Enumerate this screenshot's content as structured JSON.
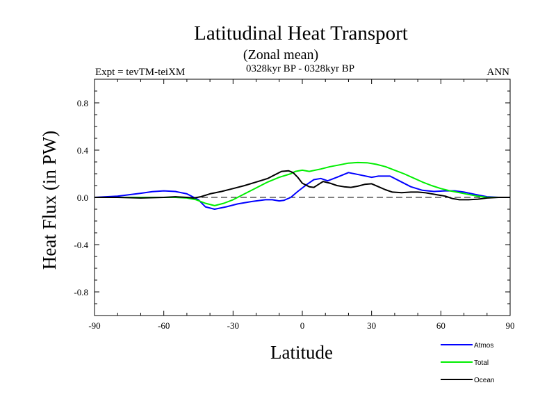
{
  "title": "Latitudinal Heat Transport",
  "subtitle": "(Zonal mean)",
  "left_label": "Expt = tevTM-teiXM",
  "center_label": "0328kyr BP - 0328kyr BP",
  "right_label": "ANN",
  "chart_data": {
    "type": "line",
    "xlabel": "Latitude",
    "ylabel": "Heat Flux (in PW)",
    "xlim": [
      -90,
      90
    ],
    "ylim": [
      -1.0,
      1.0
    ],
    "xticks": [
      -90,
      -60,
      -30,
      0,
      30,
      60,
      90
    ],
    "xtick_labels": [
      "-90",
      "-60",
      "-30",
      "0",
      "30",
      "60",
      "90"
    ],
    "yticks": [
      -0.8,
      -0.4,
      0.0,
      0.4,
      0.8
    ],
    "ytick_labels": [
      "-0.8",
      "-0.4",
      "0.0",
      "0.4",
      "0.8"
    ],
    "zero_line": true,
    "legend_position": "bottom-right",
    "series": [
      {
        "name": "Atmos",
        "color": "#0000ff",
        "x": [
          -90,
          -80,
          -70,
          -65,
          -60,
          -55,
          -50,
          -45,
          -42,
          -38,
          -33,
          -28,
          -22,
          -16,
          -13,
          -10,
          -8,
          -5,
          -2,
          2,
          5,
          8,
          11,
          15,
          20,
          25,
          30,
          33,
          38,
          42,
          47,
          52,
          57,
          62,
          66,
          70,
          75,
          80,
          85,
          90
        ],
        "y": [
          0.0,
          0.01,
          0.035,
          0.048,
          0.055,
          0.05,
          0.03,
          -0.02,
          -0.08,
          -0.1,
          -0.08,
          -0.055,
          -0.035,
          -0.02,
          -0.02,
          -0.03,
          -0.025,
          0.0,
          0.05,
          0.11,
          0.15,
          0.16,
          0.14,
          0.17,
          0.21,
          0.19,
          0.17,
          0.18,
          0.18,
          0.14,
          0.09,
          0.06,
          0.05,
          0.055,
          0.055,
          0.045,
          0.025,
          0.005,
          0.0,
          0.0
        ]
      },
      {
        "name": "Total",
        "color": "#00ee00",
        "x": [
          -90,
          -80,
          -70,
          -60,
          -55,
          -50,
          -46,
          -42,
          -38,
          -34,
          -30,
          -25,
          -20,
          -15,
          -10,
          -5,
          -3,
          0,
          3,
          8,
          12,
          16,
          20,
          24,
          28,
          32,
          36,
          40,
          44,
          48,
          52,
          56,
          60,
          64,
          68,
          72,
          76,
          80,
          85,
          90
        ],
        "y": [
          0.0,
          0.0,
          0.0,
          0.0,
          0.0,
          -0.005,
          -0.02,
          -0.05,
          -0.07,
          -0.05,
          -0.02,
          0.03,
          0.08,
          0.13,
          0.17,
          0.2,
          0.22,
          0.23,
          0.22,
          0.24,
          0.26,
          0.275,
          0.29,
          0.295,
          0.293,
          0.28,
          0.26,
          0.23,
          0.2,
          0.165,
          0.13,
          0.1,
          0.075,
          0.055,
          0.04,
          0.025,
          0.01,
          0.0,
          0.0,
          0.0
        ]
      },
      {
        "name": "Ocean",
        "color": "#000000",
        "x": [
          -90,
          -80,
          -70,
          -60,
          -55,
          -50,
          -47,
          -44,
          -40,
          -35,
          -30,
          -25,
          -20,
          -15,
          -12,
          -9,
          -6,
          -4,
          -2,
          0,
          3,
          5,
          7,
          9,
          12,
          15,
          18,
          21,
          24,
          27,
          30,
          33,
          36,
          39,
          43,
          47,
          50,
          53,
          56,
          59,
          62,
          65,
          68,
          72,
          76,
          80,
          85,
          90
        ],
        "y": [
          0.0,
          0.0,
          -0.005,
          0.0,
          0.005,
          0.0,
          -0.005,
          0.005,
          0.03,
          0.05,
          0.075,
          0.1,
          0.13,
          0.16,
          0.19,
          0.22,
          0.225,
          0.21,
          0.17,
          0.12,
          0.09,
          0.085,
          0.11,
          0.135,
          0.12,
          0.1,
          0.09,
          0.085,
          0.095,
          0.11,
          0.115,
          0.09,
          0.065,
          0.045,
          0.04,
          0.045,
          0.045,
          0.04,
          0.03,
          0.02,
          0.01,
          -0.01,
          -0.02,
          -0.02,
          -0.015,
          -0.005,
          0.0,
          0.0
        ]
      }
    ]
  }
}
